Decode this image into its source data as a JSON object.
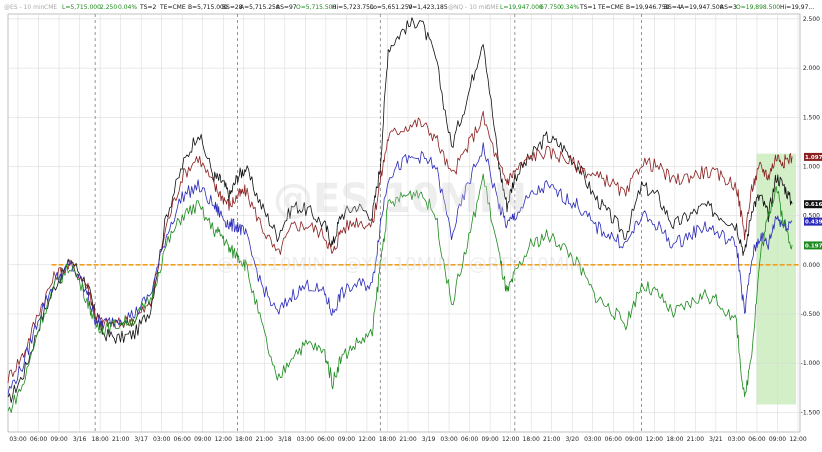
{
  "header": {
    "es": {
      "symbol": "@ES - 10 min",
      "exchange": "CME",
      "last": "L=5,715.000",
      "change": "2.250",
      "pct": "0.04%",
      "ts": "TS=2",
      "te": "TE=CME",
      "bid": "B=5,715.000",
      "bs": "BS=28",
      "ask": "A=5,715.250",
      "as": "AS=97",
      "open": "O=5,715.500",
      "high": "Hi=5,723.750",
      "low": "Lo=5,651.250",
      "vol": "V=1,423,185"
    },
    "nq": {
      "symbol": "@NQ - 10 min",
      "exchange": "CME",
      "last": "L=19,947.000",
      "change": "67.750",
      "pct": "0.34%",
      "ts": "TS=1",
      "te": "TE=CME",
      "bid": "B=19,946.750",
      "bs": "BS=4",
      "ask": "A=19,947.500",
      "as": "AS=3",
      "open": "O=19,898.500",
      "high": "Hi=19,97..."
    }
  },
  "watermark": {
    "main": "@ES 10MIN",
    "sub": "@NQ 10MIN - @YM 10MIN - @RTY 10MIN"
  },
  "chart_data": {
    "type": "line",
    "x_tick_labels": [
      "03:00",
      "06:00",
      "09:00",
      "3/16",
      "18:00",
      "21:00",
      "3/17",
      "03:00",
      "06:00",
      "09:00",
      "12:00",
      "18:00",
      "21:00",
      "3/18",
      "03:00",
      "06:00",
      "09:00",
      "12:00",
      "18:00",
      "21:00",
      "3/19",
      "03:00",
      "06:00",
      "09:00",
      "12:00",
      "18:00",
      "21:00",
      "3/20",
      "03:00",
      "06:00",
      "09:00",
      "12:00",
      "18:00",
      "21:00",
      "3/21",
      "03:00",
      "06:00",
      "09:00",
      "12:00"
    ],
    "y_tick_labels": [
      "2.500",
      "2.000",
      "1.500",
      "1.000",
      "0.500",
      "0.000",
      "-0.500",
      "-1.000",
      "-1.500"
    ],
    "ylim": [
      -1.7,
      2.55
    ],
    "xlim": [
      0,
      100
    ],
    "reference_line": {
      "value": 0.0,
      "color": "#f0a020"
    },
    "session_separators": [
      11,
      29,
      47,
      64,
      80
    ],
    "highlight": {
      "x0": 94.5,
      "x1": 99.5,
      "y0": -1.42,
      "y1": 1.13,
      "color": "#bfe8b0"
    },
    "end_labels": [
      {
        "text": "1.097%",
        "value": 1.097,
        "color": "#8b2020"
      },
      {
        "text": "0.616%",
        "value": 0.616,
        "color": "#111111"
      },
      {
        "text": "0.439%",
        "value": 0.439,
        "color": "#2a2ab8"
      },
      {
        "text": "0.197%",
        "value": 0.197,
        "color": "#1c8a1c"
      }
    ],
    "series": [
      {
        "color": "#111111",
        "x": [
          0,
          2,
          4,
          6,
          8,
          10,
          11,
          12,
          14,
          16,
          18,
          20,
          22,
          24,
          26,
          27,
          28,
          29,
          30,
          32,
          34,
          36,
          38,
          40,
          41,
          42,
          44,
          46,
          47,
          48,
          50,
          52,
          54,
          56,
          58,
          60,
          62,
          63,
          64,
          66,
          68,
          70,
          72,
          74,
          76,
          78,
          80,
          82,
          84,
          86,
          88,
          90,
          92,
          93,
          94,
          95,
          96,
          97,
          98,
          99
        ],
        "y": [
          -1.4,
          -1.1,
          -0.6,
          -0.2,
          0.05,
          -0.2,
          -0.5,
          -0.7,
          -0.75,
          -0.7,
          -0.45,
          0.5,
          1.0,
          1.35,
          0.9,
          0.85,
          0.7,
          0.9,
          0.98,
          0.6,
          0.3,
          0.6,
          0.55,
          0.4,
          0.2,
          0.5,
          0.6,
          0.5,
          1.0,
          2.2,
          2.4,
          2.5,
          2.1,
          1.2,
          1.7,
          2.3,
          1.0,
          0.6,
          0.9,
          1.1,
          1.3,
          1.2,
          1.0,
          0.7,
          0.5,
          0.3,
          0.8,
          0.7,
          0.4,
          0.5,
          0.6,
          0.5,
          0.4,
          0.1,
          0.6,
          0.7,
          0.5,
          0.9,
          0.8,
          0.62
        ]
      },
      {
        "color": "#8b2020",
        "x": [
          0,
          2,
          4,
          6,
          8,
          10,
          11,
          12,
          14,
          16,
          18,
          20,
          22,
          24,
          26,
          27,
          28,
          29,
          30,
          32,
          34,
          36,
          38,
          40,
          41,
          42,
          44,
          46,
          47,
          48,
          50,
          52,
          54,
          56,
          58,
          60,
          62,
          63,
          64,
          66,
          68,
          70,
          72,
          74,
          76,
          78,
          80,
          82,
          84,
          86,
          88,
          90,
          92,
          93,
          94,
          95,
          96,
          97,
          98,
          99
        ],
        "y": [
          -1.15,
          -0.9,
          -0.45,
          -0.1,
          0.0,
          -0.2,
          -0.5,
          -0.6,
          -0.6,
          -0.55,
          -0.4,
          0.4,
          0.9,
          1.1,
          0.8,
          0.7,
          0.6,
          0.7,
          0.75,
          0.4,
          0.1,
          0.4,
          0.4,
          0.3,
          0.1,
          0.35,
          0.45,
          0.4,
          0.85,
          1.3,
          1.4,
          1.45,
          1.3,
          0.9,
          1.2,
          1.5,
          1.0,
          0.85,
          0.95,
          1.1,
          1.15,
          1.1,
          1.0,
          0.9,
          0.85,
          0.7,
          1.05,
          1.0,
          0.85,
          0.9,
          0.95,
          0.9,
          0.8,
          0.3,
          0.8,
          1.0,
          0.9,
          1.1,
          1.05,
          1.1
        ]
      },
      {
        "color": "#2a2ab8",
        "x": [
          0,
          2,
          4,
          6,
          8,
          10,
          11,
          12,
          14,
          16,
          18,
          20,
          22,
          24,
          26,
          27,
          28,
          29,
          30,
          32,
          34,
          36,
          38,
          40,
          41,
          42,
          44,
          46,
          47,
          48,
          50,
          52,
          54,
          56,
          58,
          60,
          62,
          63,
          64,
          66,
          68,
          70,
          72,
          74,
          76,
          78,
          80,
          82,
          84,
          86,
          88,
          90,
          92,
          93,
          94,
          95,
          96,
          97,
          98,
          99
        ],
        "y": [
          -1.3,
          -1.0,
          -0.5,
          -0.15,
          0.0,
          -0.3,
          -0.55,
          -0.6,
          -0.55,
          -0.5,
          -0.3,
          0.3,
          0.7,
          0.8,
          0.6,
          0.5,
          0.4,
          0.4,
          0.3,
          -0.2,
          -0.5,
          -0.3,
          -0.2,
          -0.3,
          -0.5,
          -0.3,
          -0.2,
          -0.2,
          0.4,
          0.9,
          1.05,
          1.1,
          1.0,
          0.3,
          0.8,
          1.2,
          0.6,
          0.4,
          0.5,
          0.7,
          0.8,
          0.7,
          0.6,
          0.4,
          0.3,
          0.2,
          0.5,
          0.4,
          0.2,
          0.3,
          0.4,
          0.3,
          0.2,
          -0.5,
          0.1,
          0.3,
          0.2,
          0.5,
          0.4,
          0.44
        ]
      },
      {
        "color": "#1c8a1c",
        "x": [
          0,
          2,
          4,
          6,
          8,
          10,
          11,
          12,
          14,
          16,
          18,
          20,
          22,
          24,
          26,
          27,
          28,
          29,
          30,
          32,
          34,
          36,
          38,
          40,
          41,
          42,
          44,
          46,
          47,
          48,
          50,
          52,
          54,
          56,
          58,
          60,
          62,
          63,
          64,
          66,
          68,
          70,
          72,
          74,
          76,
          78,
          80,
          82,
          84,
          86,
          88,
          90,
          92,
          93,
          94,
          95,
          96,
          97,
          98,
          99
        ],
        "y": [
          -1.5,
          -1.2,
          -0.6,
          -0.2,
          0.0,
          -0.35,
          -0.6,
          -0.65,
          -0.6,
          -0.55,
          -0.35,
          0.2,
          0.5,
          0.6,
          0.35,
          0.3,
          0.15,
          0.1,
          0.0,
          -0.6,
          -1.2,
          -0.9,
          -0.8,
          -0.9,
          -1.2,
          -0.95,
          -0.8,
          -0.7,
          0.0,
          0.6,
          0.7,
          0.75,
          0.5,
          -0.4,
          0.2,
          0.9,
          0.1,
          -0.3,
          -0.1,
          0.2,
          0.3,
          0.2,
          0.0,
          -0.3,
          -0.45,
          -0.6,
          -0.2,
          -0.3,
          -0.5,
          -0.4,
          -0.3,
          -0.4,
          -0.6,
          -1.4,
          -0.8,
          0.1,
          0.5,
          0.8,
          0.4,
          0.2
        ]
      }
    ]
  }
}
